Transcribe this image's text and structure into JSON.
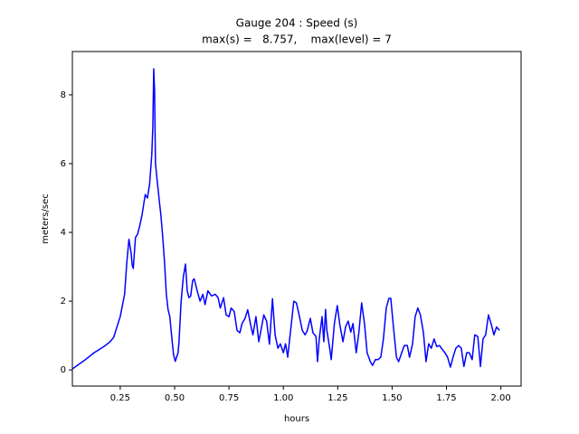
{
  "chart_data": {
    "type": "line",
    "title": "Gauge 204 : Speed (s)",
    "subtitle": "max(s) =   8.757,    max(level) = 7",
    "x_label": "hours",
    "y_label": "meters/sec",
    "xlim": [
      0.03,
      2.093
    ],
    "ylim": [
      -0.47,
      9.26
    ],
    "xticks": [
      0.25,
      {
        "value": 0.5,
        "label": "0.50"
      },
      0.75,
      {
        "value": 1.0,
        "label": "1.00"
      },
      1.25,
      {
        "value": 1.5,
        "label": "1.50"
      },
      1.75,
      {
        "value": 2.0,
        "label": "2.00"
      }
    ],
    "yticks": [
      0,
      2,
      4,
      6,
      8
    ],
    "grid": false,
    "series": [
      {
        "color": "#0000ff",
        "x": [
          0.03,
          0.09,
          0.13,
          0.175,
          0.2,
          0.21,
          0.22,
          0.23,
          0.25,
          0.27,
          0.28,
          0.29,
          0.3,
          0.305,
          0.31,
          0.32,
          0.33,
          0.34,
          0.35,
          0.365,
          0.375,
          0.385,
          0.395,
          0.4,
          0.404,
          0.408,
          0.412,
          0.42,
          0.43,
          0.437,
          0.445,
          0.454,
          0.462,
          0.47,
          0.478,
          0.487,
          0.495,
          0.503,
          0.516,
          0.52,
          0.53,
          0.54,
          0.55,
          0.558,
          0.566,
          0.574,
          0.583,
          0.59,
          0.604,
          0.617,
          0.63,
          0.64,
          0.653,
          0.67,
          0.687,
          0.7,
          0.71,
          0.725,
          0.737,
          0.75,
          0.76,
          0.774,
          0.787,
          0.8,
          0.81,
          0.824,
          0.836,
          0.85,
          0.86,
          0.874,
          0.887,
          0.9,
          0.91,
          0.923,
          0.936,
          0.95,
          0.962,
          0.975,
          0.986,
          1.0,
          1.01,
          1.02,
          1.036,
          1.048,
          1.06,
          1.074,
          1.087,
          1.1,
          1.11,
          1.124,
          1.136,
          1.15,
          1.157,
          1.165,
          1.178,
          1.186,
          1.194,
          1.2,
          1.215,
          1.22,
          1.235,
          1.248,
          1.26,
          1.274,
          1.286,
          1.298,
          1.31,
          1.32,
          1.335,
          1.347,
          1.36,
          1.373,
          1.385,
          1.4,
          1.41,
          1.423,
          1.435,
          1.448,
          1.46,
          1.473,
          1.485,
          1.494,
          1.506,
          1.52,
          1.53,
          1.544,
          1.556,
          1.57,
          1.58,
          1.594,
          1.606,
          1.618,
          1.63,
          1.644,
          1.656,
          1.668,
          1.68,
          1.693,
          1.705,
          1.718,
          1.73,
          1.743,
          1.755,
          1.768,
          1.78,
          1.793,
          1.806,
          1.818,
          1.83,
          1.843,
          1.855,
          1.868,
          1.88,
          1.894,
          1.906,
          1.918,
          1.93,
          1.943,
          1.955,
          1.968,
          1.98,
          1.994
        ],
        "values": [
          0.03,
          0.3,
          0.5,
          0.68,
          0.8,
          0.87,
          0.95,
          1.15,
          1.55,
          2.2,
          3.1,
          3.8,
          3.4,
          3.05,
          2.95,
          3.85,
          3.95,
          4.2,
          4.5,
          5.1,
          5.0,
          5.4,
          6.25,
          7.08,
          8.757,
          8.1,
          6.0,
          5.5,
          4.9,
          4.5,
          3.9,
          3.1,
          2.2,
          1.75,
          1.55,
          0.95,
          0.45,
          0.25,
          0.5,
          0.8,
          2.0,
          2.7,
          3.08,
          2.3,
          2.1,
          2.15,
          2.6,
          2.65,
          2.3,
          2.0,
          2.2,
          1.9,
          2.3,
          2.15,
          2.2,
          2.1,
          1.8,
          2.1,
          1.6,
          1.55,
          1.8,
          1.7,
          1.15,
          1.08,
          1.35,
          1.5,
          1.75,
          1.3,
          1.02,
          1.55,
          0.82,
          1.25,
          1.6,
          1.42,
          0.75,
          2.07,
          1.02,
          0.63,
          0.76,
          0.5,
          0.76,
          0.37,
          1.3,
          2.0,
          1.95,
          1.55,
          1.15,
          1.02,
          1.15,
          1.5,
          1.08,
          0.97,
          0.24,
          0.9,
          1.55,
          0.82,
          1.76,
          1.15,
          0.55,
          0.3,
          1.37,
          1.87,
          1.3,
          0.82,
          1.25,
          1.42,
          1.1,
          1.35,
          0.5,
          1.08,
          1.95,
          1.35,
          0.5,
          0.24,
          0.13,
          0.3,
          0.3,
          0.37,
          0.9,
          1.8,
          2.08,
          2.08,
          1.25,
          0.37,
          0.24,
          0.5,
          0.71,
          0.71,
          0.37,
          0.76,
          1.55,
          1.8,
          1.6,
          1.08,
          0.24,
          0.76,
          0.63,
          0.9,
          0.68,
          0.71,
          0.6,
          0.5,
          0.37,
          0.08,
          0.37,
          0.63,
          0.71,
          0.63,
          0.1,
          0.5,
          0.5,
          0.3,
          1.02,
          0.97,
          0.1,
          0.9,
          1.02,
          1.6,
          1.35,
          1.02,
          1.25,
          1.15
        ]
      }
    ]
  }
}
